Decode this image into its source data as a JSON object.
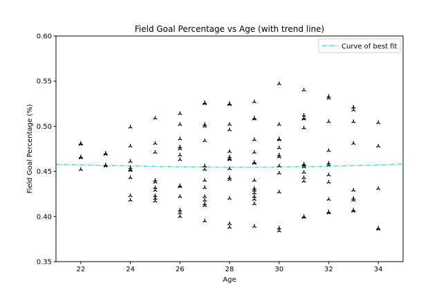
{
  "chart_data": {
    "type": "scatter",
    "title": "Field Goal Percentage vs Age (with trend line)",
    "xlabel": "Age",
    "ylabel": "Field Goal Percentage (%)",
    "xlim": [
      21,
      35
    ],
    "ylim": [
      0.35,
      0.6
    ],
    "xticks": [
      22,
      24,
      26,
      28,
      30,
      32,
      34
    ],
    "yticks": [
      0.35,
      0.4,
      0.45,
      0.5,
      0.55,
      0.6
    ],
    "ytick_labels": [
      "0.35",
      "0.40",
      "0.45",
      "0.50",
      "0.55",
      "0.60"
    ],
    "grid": false,
    "legend": {
      "position": "top-right",
      "entries": [
        "Curve of best fit"
      ]
    },
    "trend_color": "#40e0d0",
    "marker_color": "#000000",
    "points": [
      {
        "x": 22,
        "y": 0.481
      },
      {
        "x": 22,
        "y": 0.48
      },
      {
        "x": 22,
        "y": 0.466
      },
      {
        "x": 22,
        "y": 0.465
      },
      {
        "x": 22,
        "y": 0.452
      },
      {
        "x": 23,
        "y": 0.47
      },
      {
        "x": 23,
        "y": 0.469
      },
      {
        "x": 23,
        "y": 0.457
      },
      {
        "x": 23,
        "y": 0.456
      },
      {
        "x": 24,
        "y": 0.499
      },
      {
        "x": 24,
        "y": 0.478
      },
      {
        "x": 24,
        "y": 0.461
      },
      {
        "x": 24,
        "y": 0.454
      },
      {
        "x": 24,
        "y": 0.452
      },
      {
        "x": 24,
        "y": 0.451
      },
      {
        "x": 24,
        "y": 0.443
      },
      {
        "x": 24,
        "y": 0.423
      },
      {
        "x": 24,
        "y": 0.418
      },
      {
        "x": 25,
        "y": 0.509
      },
      {
        "x": 25,
        "y": 0.481
      },
      {
        "x": 25,
        "y": 0.471
      },
      {
        "x": 25,
        "y": 0.44
      },
      {
        "x": 25,
        "y": 0.438
      },
      {
        "x": 25,
        "y": 0.432
      },
      {
        "x": 25,
        "y": 0.429
      },
      {
        "x": 25,
        "y": 0.423
      },
      {
        "x": 25,
        "y": 0.42
      },
      {
        "x": 25,
        "y": 0.417
      },
      {
        "x": 26,
        "y": 0.514
      },
      {
        "x": 26,
        "y": 0.502
      },
      {
        "x": 26,
        "y": 0.486
      },
      {
        "x": 26,
        "y": 0.477
      },
      {
        "x": 26,
        "y": 0.475
      },
      {
        "x": 26,
        "y": 0.468
      },
      {
        "x": 26,
        "y": 0.463
      },
      {
        "x": 26,
        "y": 0.434
      },
      {
        "x": 26,
        "y": 0.433
      },
      {
        "x": 26,
        "y": 0.422
      },
      {
        "x": 26,
        "y": 0.407
      },
      {
        "x": 26,
        "y": 0.404
      },
      {
        "x": 26,
        "y": 0.4
      },
      {
        "x": 27,
        "y": 0.526
      },
      {
        "x": 27,
        "y": 0.525
      },
      {
        "x": 27,
        "y": 0.502
      },
      {
        "x": 27,
        "y": 0.5
      },
      {
        "x": 27,
        "y": 0.484
      },
      {
        "x": 27,
        "y": 0.456
      },
      {
        "x": 27,
        "y": 0.452
      },
      {
        "x": 27,
        "y": 0.44
      },
      {
        "x": 27,
        "y": 0.432
      },
      {
        "x": 27,
        "y": 0.422
      },
      {
        "x": 27,
        "y": 0.418
      },
      {
        "x": 27,
        "y": 0.414
      },
      {
        "x": 27,
        "y": 0.412
      },
      {
        "x": 27,
        "y": 0.395
      },
      {
        "x": 28,
        "y": 0.525
      },
      {
        "x": 28,
        "y": 0.524
      },
      {
        "x": 28,
        "y": 0.502
      },
      {
        "x": 28,
        "y": 0.496
      },
      {
        "x": 28,
        "y": 0.472
      },
      {
        "x": 28,
        "y": 0.466
      },
      {
        "x": 28,
        "y": 0.464
      },
      {
        "x": 28,
        "y": 0.463
      },
      {
        "x": 28,
        "y": 0.453
      },
      {
        "x": 28,
        "y": 0.443
      },
      {
        "x": 28,
        "y": 0.441
      },
      {
        "x": 28,
        "y": 0.42
      },
      {
        "x": 28,
        "y": 0.392
      },
      {
        "x": 28,
        "y": 0.388
      },
      {
        "x": 29,
        "y": 0.527
      },
      {
        "x": 29,
        "y": 0.509
      },
      {
        "x": 29,
        "y": 0.508
      },
      {
        "x": 29,
        "y": 0.485
      },
      {
        "x": 29,
        "y": 0.471
      },
      {
        "x": 29,
        "y": 0.46
      },
      {
        "x": 29,
        "y": 0.459
      },
      {
        "x": 29,
        "y": 0.44
      },
      {
        "x": 29,
        "y": 0.431
      },
      {
        "x": 29,
        "y": 0.429
      },
      {
        "x": 29,
        "y": 0.426
      },
      {
        "x": 29,
        "y": 0.422
      },
      {
        "x": 29,
        "y": 0.419
      },
      {
        "x": 29,
        "y": 0.414
      },
      {
        "x": 29,
        "y": 0.389
      },
      {
        "x": 30,
        "y": 0.547
      },
      {
        "x": 30,
        "y": 0.502
      },
      {
        "x": 30,
        "y": 0.486
      },
      {
        "x": 30,
        "y": 0.485
      },
      {
        "x": 30,
        "y": 0.476
      },
      {
        "x": 30,
        "y": 0.468
      },
      {
        "x": 30,
        "y": 0.466
      },
      {
        "x": 30,
        "y": 0.456
      },
      {
        "x": 30,
        "y": 0.448
      },
      {
        "x": 30,
        "y": 0.427
      },
      {
        "x": 30,
        "y": 0.387
      },
      {
        "x": 30,
        "y": 0.384
      },
      {
        "x": 31,
        "y": 0.54
      },
      {
        "x": 31,
        "y": 0.512
      },
      {
        "x": 31,
        "y": 0.509
      },
      {
        "x": 31,
        "y": 0.508
      },
      {
        "x": 31,
        "y": 0.498
      },
      {
        "x": 31,
        "y": 0.458
      },
      {
        "x": 31,
        "y": 0.457
      },
      {
        "x": 31,
        "y": 0.455
      },
      {
        "x": 31,
        "y": 0.449
      },
      {
        "x": 31,
        "y": 0.443
      },
      {
        "x": 31,
        "y": 0.439
      },
      {
        "x": 31,
        "y": 0.4
      },
      {
        "x": 31,
        "y": 0.399
      },
      {
        "x": 32,
        "y": 0.533
      },
      {
        "x": 32,
        "y": 0.531
      },
      {
        "x": 32,
        "y": 0.505
      },
      {
        "x": 32,
        "y": 0.473
      },
      {
        "x": 32,
        "y": 0.459
      },
      {
        "x": 32,
        "y": 0.457
      },
      {
        "x": 32,
        "y": 0.446
      },
      {
        "x": 32,
        "y": 0.438
      },
      {
        "x": 32,
        "y": 0.419
      },
      {
        "x": 32,
        "y": 0.405
      },
      {
        "x": 32,
        "y": 0.404
      },
      {
        "x": 33,
        "y": 0.521
      },
      {
        "x": 33,
        "y": 0.518
      },
      {
        "x": 33,
        "y": 0.505
      },
      {
        "x": 33,
        "y": 0.481
      },
      {
        "x": 33,
        "y": 0.429
      },
      {
        "x": 33,
        "y": 0.42
      },
      {
        "x": 33,
        "y": 0.418
      },
      {
        "x": 33,
        "y": 0.407
      },
      {
        "x": 33,
        "y": 0.406
      },
      {
        "x": 34,
        "y": 0.504
      },
      {
        "x": 34,
        "y": 0.478
      },
      {
        "x": 34,
        "y": 0.431
      },
      {
        "x": 34,
        "y": 0.387
      },
      {
        "x": 34,
        "y": 0.386
      }
    ],
    "trend_line": {
      "name": "Curve of best fit",
      "x": [
        21,
        22,
        23,
        24,
        25,
        26,
        27,
        28,
        29,
        30,
        31,
        32,
        33,
        34,
        35
      ],
      "y": [
        0.4578,
        0.4572,
        0.4565,
        0.456,
        0.4555,
        0.4551,
        0.4548,
        0.4546,
        0.4546,
        0.4548,
        0.4552,
        0.4557,
        0.4563,
        0.4571,
        0.458
      ]
    }
  }
}
